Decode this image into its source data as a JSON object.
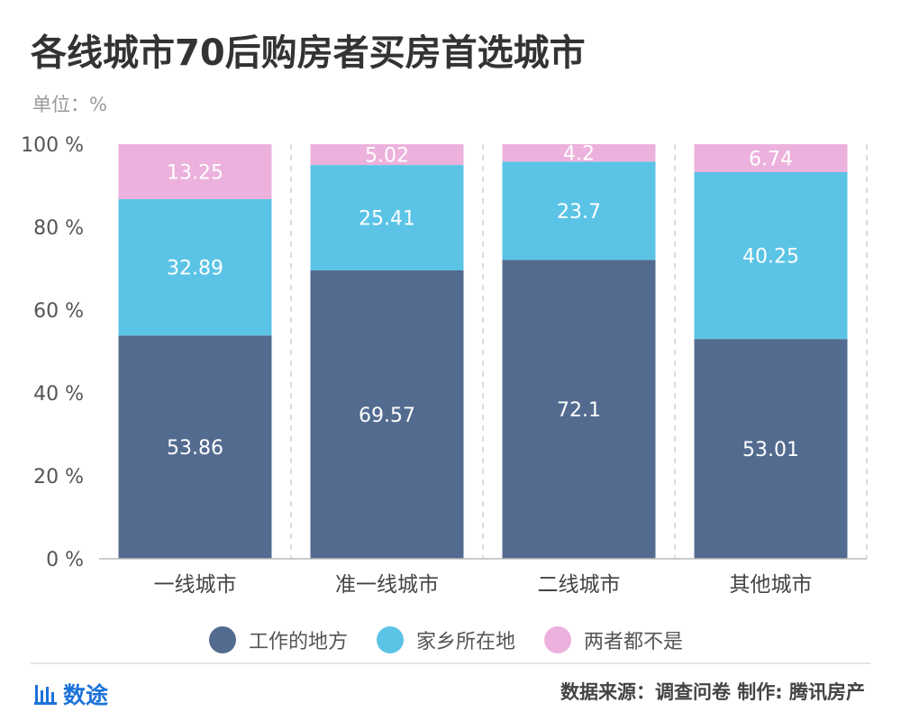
{
  "title": "各线城市70后购房者买房首选城市",
  "unit": "单位：%",
  "source": "数据来源：调查问卷  制作: 腾讯房产",
  "brand": "数途",
  "colors": {
    "work": "#536b8f",
    "home": "#5bc4e6",
    "neither": "#ecb1dc"
  },
  "chart_data": {
    "type": "bar",
    "stacked": true,
    "categories": [
      "一线城市",
      "准一线城市",
      "二线城市",
      "其他城市"
    ],
    "series": [
      {
        "name": "工作的地方",
        "values": [
          53.86,
          69.57,
          72.1,
          53.01
        ]
      },
      {
        "name": "家乡所在地",
        "values": [
          32.89,
          25.41,
          23.7,
          40.25
        ]
      },
      {
        "name": "两者都不是",
        "values": [
          13.25,
          5.02,
          4.2,
          6.74
        ]
      }
    ],
    "y_ticks": [
      "0 %",
      "20 %",
      "40 %",
      "60 %",
      "80 %",
      "100 %"
    ],
    "ylim": [
      0,
      100
    ],
    "legend_position": "bottom"
  }
}
